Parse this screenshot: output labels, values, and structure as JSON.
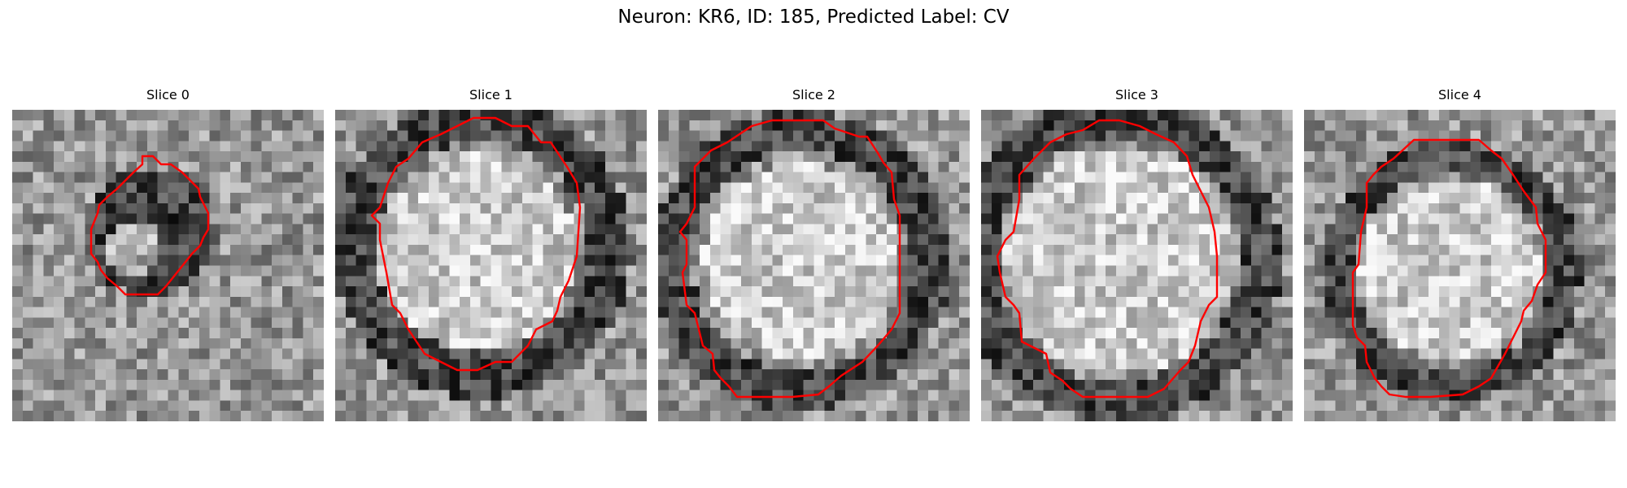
{
  "figure": {
    "title": "Neuron: KR6, ID: 185, Predicted Label: CV"
  },
  "panels": [
    {
      "title": "Slice 0",
      "style": "dark-ring-small",
      "seed": 11,
      "contour": [
        [
          160,
          57
        ],
        [
          173,
          57
        ],
        [
          183,
          67
        ],
        [
          195,
          67
        ],
        [
          209,
          77
        ],
        [
          219,
          87
        ],
        [
          229,
          97
        ],
        [
          231,
          107
        ],
        [
          241,
          127
        ],
        [
          241,
          147
        ],
        [
          235,
          157
        ],
        [
          231,
          167
        ],
        [
          221,
          177
        ],
        [
          213,
          187
        ],
        [
          205,
          197
        ],
        [
          197,
          207
        ],
        [
          189,
          217
        ],
        [
          179,
          227
        ],
        [
          159,
          227
        ],
        [
          139,
          227
        ],
        [
          129,
          217
        ],
        [
          117,
          207
        ],
        [
          109,
          197
        ],
        [
          105,
          187
        ],
        [
          97,
          177
        ],
        [
          97,
          147
        ],
        [
          101,
          137
        ],
        [
          105,
          127
        ],
        [
          107,
          117
        ],
        [
          117,
          107
        ],
        [
          129,
          97
        ],
        [
          139,
          87
        ],
        [
          149,
          77
        ],
        [
          160,
          67
        ]
      ],
      "ring_center": [
        170,
        150
      ],
      "ring_r": [
        40,
        80
      ],
      "inner_bright": [
        150,
        170,
        35
      ]
    },
    {
      "title": "Slice 1",
      "style": "bright-core",
      "seed": 23,
      "contour": [
        [
          197,
          10
        ],
        [
          217,
          20
        ],
        [
          237,
          20
        ],
        [
          253,
          40
        ],
        [
          265,
          40
        ],
        [
          285,
          70
        ],
        [
          297,
          90
        ],
        [
          301,
          120
        ],
        [
          297,
          180
        ],
        [
          287,
          210
        ],
        [
          277,
          230
        ],
        [
          273,
          247
        ],
        [
          267,
          260
        ],
        [
          247,
          270
        ],
        [
          237,
          290
        ],
        [
          217,
          310
        ],
        [
          197,
          310
        ],
        [
          175,
          320
        ],
        [
          150,
          320
        ],
        [
          130,
          310
        ],
        [
          110,
          300
        ],
        [
          100,
          285
        ],
        [
          90,
          270
        ],
        [
          80,
          250
        ],
        [
          70,
          240
        ],
        [
          63,
          200
        ],
        [
          55,
          160
        ],
        [
          55,
          140
        ],
        [
          45,
          130
        ],
        [
          55,
          120
        ],
        [
          65,
          90
        ],
        [
          75,
          70
        ],
        [
          90,
          60
        ],
        [
          107,
          40
        ],
        [
          130,
          30
        ],
        [
          150,
          20
        ],
        [
          170,
          10
        ]
      ],
      "ring_center": [
        180,
        170
      ],
      "ring_r": [
        130,
        185
      ],
      "inner_bright": [
        175,
        175,
        120
      ]
    },
    {
      "title": "Slice 2",
      "style": "bright-core",
      "seed": 37,
      "contour": [
        [
          157,
          13
        ],
        [
          203,
          13
        ],
        [
          217,
          23
        ],
        [
          247,
          33
        ],
        [
          257,
          33
        ],
        [
          270,
          53
        ],
        [
          277,
          65
        ],
        [
          287,
          77
        ],
        [
          290,
          110
        ],
        [
          297,
          130
        ],
        [
          297,
          200
        ],
        [
          297,
          250
        ],
        [
          287,
          270
        ],
        [
          270,
          290
        ],
        [
          251,
          310
        ],
        [
          225,
          327
        ],
        [
          210,
          340
        ],
        [
          197,
          350
        ],
        [
          165,
          353
        ],
        [
          125,
          353
        ],
        [
          97,
          353
        ],
        [
          87,
          340
        ],
        [
          77,
          330
        ],
        [
          69,
          320
        ],
        [
          67,
          300
        ],
        [
          55,
          290
        ],
        [
          50,
          270
        ],
        [
          45,
          250
        ],
        [
          35,
          240
        ],
        [
          30,
          200
        ],
        [
          35,
          190
        ],
        [
          35,
          160
        ],
        [
          27,
          150
        ],
        [
          35,
          140
        ],
        [
          45,
          120
        ],
        [
          45,
          90
        ],
        [
          45,
          70
        ],
        [
          65,
          50
        ],
        [
          85,
          40
        ],
        [
          115,
          20
        ],
        [
          140,
          13
        ]
      ],
      "ring_center": [
        175,
        185
      ],
      "ring_r": [
        135,
        185
      ],
      "inner_bright": [
        175,
        185,
        120
      ]
    },
    {
      "title": "Slice 3",
      "style": "bright-core",
      "seed": 53,
      "contour": [
        [
          145,
          13
        ],
        [
          170,
          13
        ],
        [
          195,
          20
        ],
        [
          215,
          30
        ],
        [
          237,
          40
        ],
        [
          253,
          57
        ],
        [
          260,
          80
        ],
        [
          270,
          100
        ],
        [
          280,
          120
        ],
        [
          287,
          150
        ],
        [
          290,
          180
        ],
        [
          290,
          230
        ],
        [
          280,
          240
        ],
        [
          270,
          260
        ],
        [
          263,
          290
        ],
        [
          255,
          310
        ],
        [
          245,
          320
        ],
        [
          225,
          343
        ],
        [
          205,
          353
        ],
        [
          165,
          353
        ],
        [
          125,
          353
        ],
        [
          110,
          343
        ],
        [
          100,
          333
        ],
        [
          85,
          323
        ],
        [
          80,
          300
        ],
        [
          60,
          290
        ],
        [
          50,
          285
        ],
        [
          47,
          250
        ],
        [
          40,
          240
        ],
        [
          30,
          230
        ],
        [
          23,
          200
        ],
        [
          20,
          180
        ],
        [
          30,
          160
        ],
        [
          40,
          150
        ],
        [
          47,
          110
        ],
        [
          47,
          80
        ],
        [
          65,
          60
        ],
        [
          85,
          40
        ],
        [
          105,
          30
        ],
        [
          125,
          25
        ]
      ],
      "ring_center": [
        170,
        185
      ],
      "ring_r": [
        150,
        200
      ],
      "inner_bright": [
        170,
        185,
        140
      ]
    },
    {
      "title": "Slice 4",
      "style": "bright-core-ring",
      "seed": 71,
      "contour": [
        [
          135,
          37
        ],
        [
          200,
          37
        ],
        [
          215,
          37
        ],
        [
          230,
          50
        ],
        [
          243,
          60
        ],
        [
          257,
          80
        ],
        [
          270,
          100
        ],
        [
          285,
          120
        ],
        [
          287,
          140
        ],
        [
          297,
          160
        ],
        [
          297,
          200
        ],
        [
          287,
          215
        ],
        [
          280,
          235
        ],
        [
          270,
          247
        ],
        [
          267,
          260
        ],
        [
          257,
          280
        ],
        [
          247,
          300
        ],
        [
          230,
          330
        ],
        [
          215,
          340
        ],
        [
          195,
          350
        ],
        [
          155,
          353
        ],
        [
          125,
          353
        ],
        [
          105,
          350
        ],
        [
          95,
          340
        ],
        [
          87,
          330
        ],
        [
          77,
          310
        ],
        [
          75,
          290
        ],
        [
          65,
          280
        ],
        [
          60,
          265
        ],
        [
          60,
          240
        ],
        [
          60,
          200
        ],
        [
          67,
          190
        ],
        [
          70,
          150
        ],
        [
          77,
          120
        ],
        [
          77,
          90
        ],
        [
          85,
          80
        ],
        [
          95,
          70
        ],
        [
          110,
          60
        ]
      ],
      "ring_center": [
        180,
        200
      ],
      "ring_r": [
        120,
        160
      ],
      "inner_bright": [
        180,
        195,
        110
      ]
    }
  ]
}
